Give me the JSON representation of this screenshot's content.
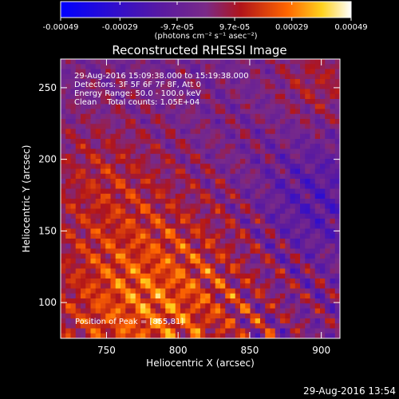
{
  "chart_data": {
    "type": "heatmap",
    "title": "Reconstructed RHESSI Image",
    "xlabel": "Heliocentric X (arcsec)",
    "ylabel": "Heliocentric Y (arcsec)",
    "xlim": [
      718,
      913
    ],
    "ylim": [
      75,
      270
    ],
    "x_ticks": [
      750,
      800,
      850,
      900
    ],
    "y_ticks": [
      100,
      150,
      200,
      250
    ],
    "colorbar": {
      "min": -0.00049,
      "max": 0.00049,
      "ticks": [
        -0.00049,
        -0.00029,
        -9.7e-05,
        9.7e-05,
        0.00029,
        0.00049
      ],
      "tick_labels": [
        "-0.00049",
        "-0.00029",
        "-9.7e-05",
        "9.7e-05",
        "0.00029",
        "0.00049"
      ],
      "unit_label": "(photons cm⁻² s⁻¹ asec⁻²)",
      "colormap": [
        "#0000ff",
        "#5a1aa0",
        "#7a2a88",
        "#b0141a",
        "#ff6600",
        "#ffd21e",
        "#ffffff"
      ]
    },
    "annotations": {
      "time_range": "29-Aug-2016 15:09:38.000 to 15:19:38.000",
      "detectors": "Detectors: 3F 5F 6F 7F 8F, Att 0",
      "energy_range": "Energy Range: 50.0 - 100.0 keV",
      "clean_counts": "Clean    Total counts: 1.05E+04",
      "peak": "Position of Peak = [855,81]"
    },
    "peak_position": [
      855,
      81
    ]
  },
  "footer": {
    "timestamp": "29-Aug-2016 13:54"
  }
}
